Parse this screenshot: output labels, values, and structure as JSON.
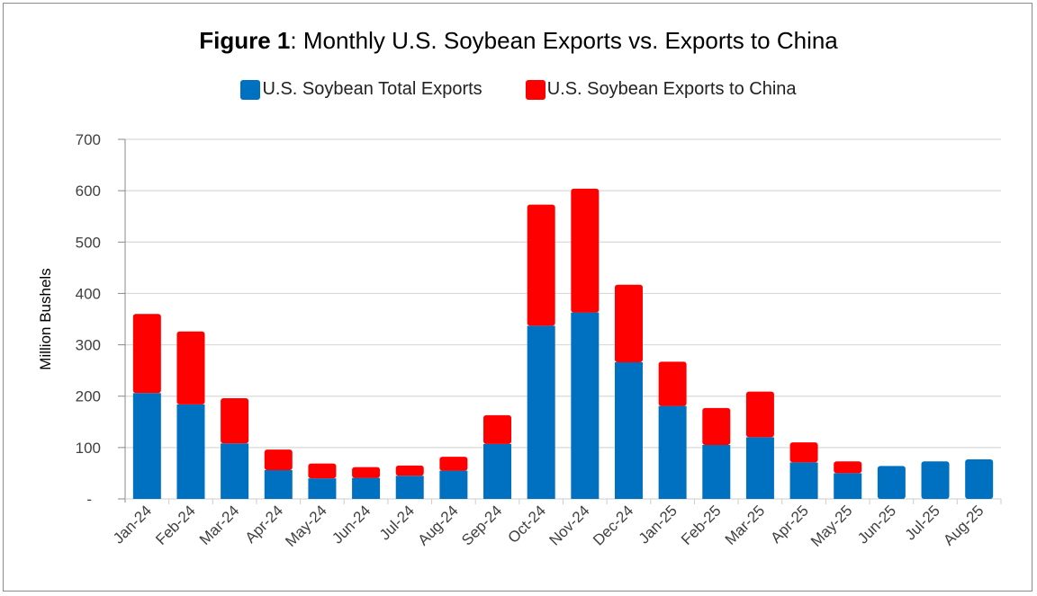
{
  "chart_data": {
    "type": "bar",
    "stacked": true,
    "title_bold": "Figure 1",
    "title_rest": ":  Monthly U.S. Soybean Exports vs. Exports to China",
    "xlabel": "",
    "ylabel": "Million Bushels",
    "ylim": [
      0,
      700
    ],
    "yticks": [
      0,
      100,
      200,
      300,
      400,
      500,
      600,
      700
    ],
    "ytick_labels": [
      "-",
      "100",
      "200",
      "300",
      "400",
      "500",
      "600",
      "700"
    ],
    "grid": true,
    "legend_position": "top",
    "categories": [
      "Jan-24",
      "Feb-24",
      "Mar-24",
      "Apr-24",
      "May-24",
      "Jun-24",
      "Jul-24",
      "Aug-24",
      "Sep-24",
      "Oct-24",
      "Nov-24",
      "Dec-24",
      "Jan-25",
      "Feb-25",
      "Mar-25",
      "Apr-25",
      "May-25",
      "Jun-25",
      "Jul-25",
      "Aug-25"
    ],
    "series": [
      {
        "name": "U.S. Soybean Total Exports",
        "color": "#0070C0",
        "values": [
          206,
          184,
          108,
          56,
          40,
          41,
          45,
          55,
          107,
          337,
          363,
          266,
          181,
          105,
          120,
          71,
          50,
          64,
          73,
          77
        ]
      },
      {
        "name": "U.S. Soybean Exports to China",
        "color": "#FF0000",
        "values": [
          154,
          142,
          88,
          40,
          29,
          21,
          20,
          27,
          56,
          236,
          241,
          151,
          86,
          72,
          89,
          39,
          23,
          0,
          0,
          0
        ]
      }
    ]
  }
}
